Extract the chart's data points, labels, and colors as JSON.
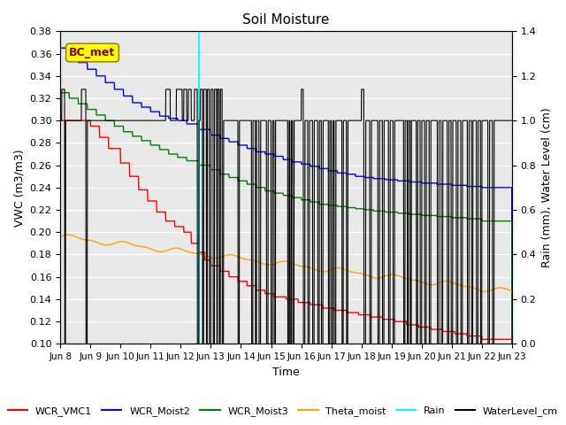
{
  "title": "Soil Moisture",
  "xlabel": "Time",
  "ylabel_left": "VWC (m3/m3)",
  "ylabel_right": "Rain (mm), Water Level (cm)",
  "xlim": [
    0,
    15
  ],
  "ylim_left": [
    0.1,
    0.38
  ],
  "ylim_right": [
    0.0,
    1.4
  ],
  "background_color": "#e8e8e8",
  "annotation_box_text": "BC_met",
  "annotation_box_color": "#ffff00",
  "annotation_box_text_color": "#8b0000",
  "cyan_vline_x": 4.6,
  "xtick_labels": [
    "Jun 8",
    "Jun 9",
    "Jun 10",
    "Jun 11",
    "Jun 12",
    "Jun 13",
    "Jun 14",
    "Jun 15",
    "Jun 16",
    "Jun 17",
    "Jun 18",
    "Jun 19",
    "Jun 20",
    "Jun 21",
    "Jun 22",
    "Jun 23"
  ],
  "legend_entries": [
    "WCR_VMC1",
    "WCR_Moist2",
    "WCR_Moist3",
    "Theta_moist",
    "Rain",
    "WaterLevel_cm"
  ],
  "legend_colors": [
    "red",
    "blue",
    "green",
    "orange",
    "cyan",
    "black"
  ],
  "wl_base": 1.0,
  "wl_spike": 1.14,
  "rain_base": 0.0
}
